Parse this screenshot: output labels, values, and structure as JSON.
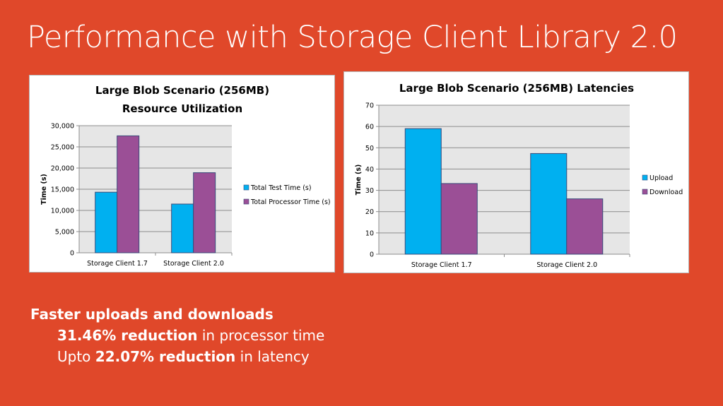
{
  "slide": {
    "title": "Performance with Storage Client Library 2.0",
    "bullets": {
      "heading": "Faster uploads and downloads",
      "line1_bold": "31.46% reduction",
      "line1_rest": " in processor time",
      "line2_pre": "Upto ",
      "line2_bold": "22.07% reduction",
      "line2_rest": " in latency"
    }
  },
  "colors": {
    "background": "#e0482a",
    "series1": "#00b0f0",
    "series2": "#9b4f96",
    "plot_bg": "#e6e6e6"
  },
  "chart_data": [
    {
      "type": "bar",
      "title": "Large Blob Scenario (256MB)",
      "subtitle": "Resource Utilization",
      "xlabel": "",
      "ylabel": "Time (s)",
      "categories": [
        "Storage Client 1.7",
        "Storage Client 2.0"
      ],
      "series": [
        {
          "name": "Total Test Time (s)",
          "values": [
            14300,
            11500
          ]
        },
        {
          "name": "Total Processor Time (s)",
          "values": [
            27600,
            18900
          ]
        }
      ],
      "ylim": [
        0,
        30000
      ],
      "yticks": [
        0,
        5000,
        10000,
        15000,
        20000,
        25000,
        30000
      ],
      "ytick_labels": [
        "0",
        "5,000",
        "10,000",
        "15,000",
        "20,000",
        "25,000",
        "30,000"
      ],
      "grid": true,
      "legend": "right"
    },
    {
      "type": "bar",
      "title": "Large Blob Scenario (256MB) Latencies",
      "subtitle": "",
      "xlabel": "",
      "ylabel": "Time (s)",
      "categories": [
        "Storage Client 1.7",
        "Storage Client 2.0"
      ],
      "series": [
        {
          "name": "Upload",
          "values": [
            59,
            47.3
          ]
        },
        {
          "name": "Download",
          "values": [
            33.2,
            26
          ]
        }
      ],
      "ylim": [
        0,
        70
      ],
      "yticks": [
        0,
        10,
        20,
        30,
        40,
        50,
        60,
        70
      ],
      "ytick_labels": [
        "0",
        "10",
        "20",
        "30",
        "40",
        "50",
        "60",
        "70"
      ],
      "grid": true,
      "legend": "right"
    }
  ]
}
